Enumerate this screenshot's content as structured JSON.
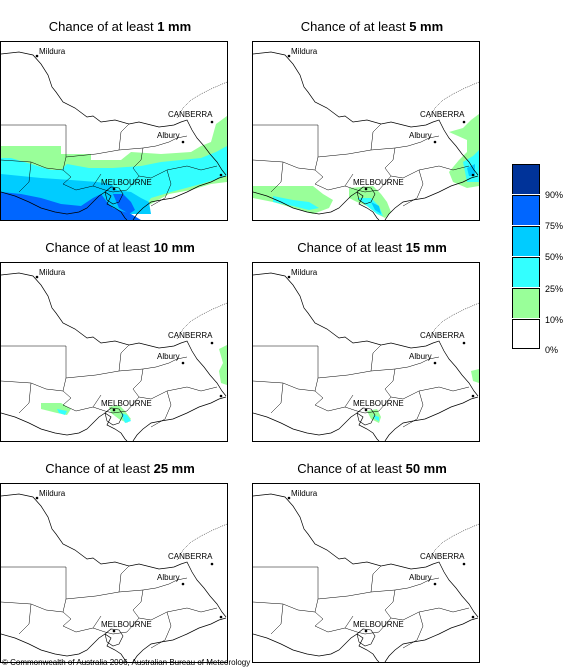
{
  "labels": {
    "title_prefix": "Chance of at least",
    "cities": {
      "mildura": "Mildura",
      "canberra": "CANBERRA",
      "albury": "Albury",
      "melbourne": "MELBOURNE"
    }
  },
  "panels": [
    {
      "threshold": "1 mm"
    },
    {
      "threshold": "5 mm"
    },
    {
      "threshold": "10 mm"
    },
    {
      "threshold": "15 mm"
    },
    {
      "threshold": "25 mm"
    },
    {
      "threshold": "50 mm"
    }
  ],
  "legend": {
    "colors": [
      "#003399",
      "#0066ff",
      "#00ccff",
      "#33ffff",
      "#99ff99",
      "#ffffff"
    ],
    "labels": [
      "90%",
      "75%",
      "50%",
      "25%",
      "10%",
      "0%"
    ]
  },
  "copyright": "© Commonwealth of Australia 2006, Australian Bureau of Meteorology"
}
